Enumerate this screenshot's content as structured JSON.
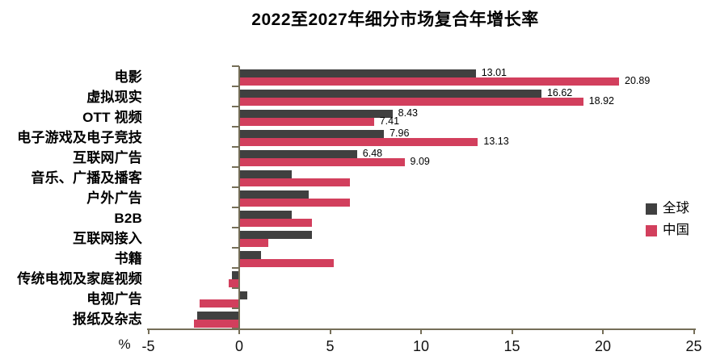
{
  "chart_data": {
    "type": "bar",
    "orientation": "horizontal",
    "title": "2022至2027年细分市场复合年增长率",
    "categories": [
      "电影",
      "虚拟现实",
      "OTT 视频",
      "电子游戏及电子竞技",
      "互联网广告",
      "音乐、广播及播客",
      "户外广告",
      "B2B",
      "互联网接入",
      "书籍",
      "传统电视及家庭视频",
      "电视广告",
      "报纸及杂志"
    ],
    "series": [
      {
        "name": "全球",
        "color": "#404040",
        "values": [
          13.01,
          16.62,
          8.43,
          7.96,
          6.48,
          2.9,
          3.8,
          2.9,
          4.0,
          1.2,
          -0.4,
          0.45,
          -2.3
        ],
        "labels": [
          "13.01",
          "16.62",
          "8.43",
          "7.96",
          "6.48",
          "",
          "",
          "",
          "",
          "",
          "",
          "",
          ""
        ]
      },
      {
        "name": "中国",
        "color": "#d23f5d",
        "values": [
          20.89,
          18.92,
          7.41,
          13.13,
          9.09,
          6.1,
          6.1,
          4.0,
          1.6,
          5.2,
          -0.6,
          -2.2,
          -2.5
        ],
        "labels": [
          "20.89",
          "18.92",
          "7.41",
          "13.13",
          "9.09",
          "",
          "",
          "",
          "",
          "",
          "",
          "",
          ""
        ]
      }
    ],
    "x_axis": {
      "min": -5,
      "max": 25,
      "ticks": [
        -5,
        0,
        5,
        10,
        15,
        20,
        25
      ],
      "unit": "%"
    },
    "legend": {
      "position": "right-middle",
      "entries": [
        "全球",
        "中国"
      ]
    },
    "grid": false,
    "axis_color": "#756e58",
    "background": "#ffffff"
  }
}
